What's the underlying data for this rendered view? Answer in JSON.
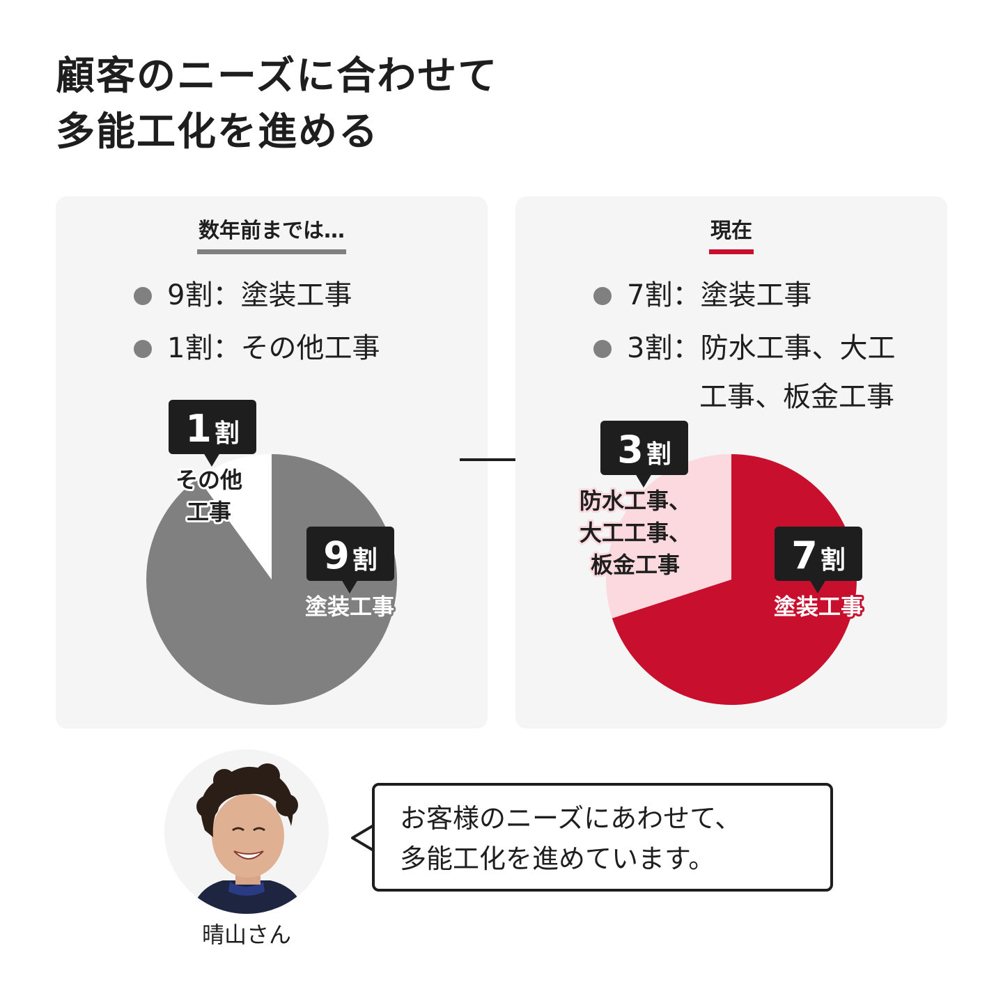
{
  "title": {
    "line1": "顧客のニーズに合わせて",
    "line2": "多能工化を進める"
  },
  "chart_data": [
    {
      "type": "pie",
      "heading": "数年前までは…",
      "legend": [
        {
          "text": "9割：塗装工事"
        },
        {
          "text": "1割：その他工事"
        }
      ],
      "slices": [
        {
          "value": 9,
          "badge": "9",
          "badge_unit": "割",
          "label_lines": [
            "塗装工事"
          ],
          "color": "#808080"
        },
        {
          "value": 1,
          "badge": "1",
          "badge_unit": "割",
          "label_lines": [
            "その他",
            "工事"
          ],
          "color": "#ffffff"
        }
      ]
    },
    {
      "type": "pie",
      "heading": "現在",
      "legend": [
        {
          "text": "7割：塗装工事"
        },
        {
          "text": "3割：防水工事、大工",
          "cont": "工事、板金工事"
        }
      ],
      "slices": [
        {
          "value": 7,
          "badge": "7",
          "badge_unit": "割",
          "label_lines": [
            "塗装工事"
          ],
          "color": "#c8102e"
        },
        {
          "value": 3,
          "badge": "3",
          "badge_unit": "割",
          "label_lines": [
            "防水工事、",
            "大工工事、",
            "板金工事"
          ],
          "color": "#fbd9df"
        }
      ]
    }
  ],
  "colors": {
    "badge": "#1e1e1e",
    "panel": "#f5f5f5",
    "accent": "#c8102e",
    "gray": "#808080"
  },
  "arrow_icon": "arrow-right-icon",
  "person": {
    "name": "晴山さん",
    "avatar_icon": "person-photo-icon"
  },
  "quote": {
    "line1": "お客様のニーズにあわせて、",
    "line2": "多能工化を進めています。"
  }
}
